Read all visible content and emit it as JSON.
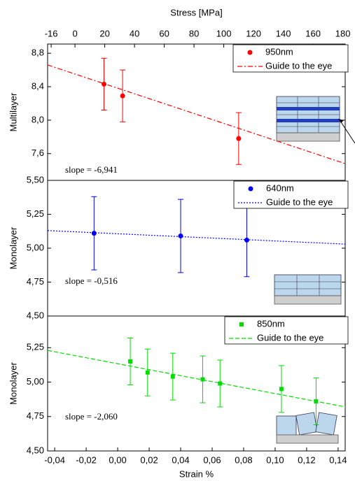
{
  "chart_data": [
    {
      "type": "scatter",
      "xlabel": "Stress [MPa]",
      "ylabel": "Multilayer",
      "annotation": "slope = -6,941",
      "xlim": [
        -18.4,
        181.6
      ],
      "xticks": [
        -16,
        0,
        20,
        40,
        60,
        80,
        100,
        120,
        140,
        160,
        180
      ],
      "ylim": [
        7.28,
        8.91
      ],
      "yticks": [
        {
          "value": 8.8,
          "label": "8,8"
        },
        {
          "value": 8.4,
          "label": "8,4"
        },
        {
          "value": 8.0,
          "label": "8,0"
        },
        {
          "value": 7.6,
          "label": "7,6"
        }
      ],
      "series": [
        {
          "name": "950nm",
          "color": "#ff0000",
          "style": "points",
          "marker": "circle",
          "x": [
            19.5,
            32,
            110
          ],
          "values": [
            8.43,
            8.29,
            7.78
          ],
          "errors": [
            0.31,
            0.31,
            0.31
          ]
        },
        {
          "name": "Guide to the eye",
          "color": "#ff0000",
          "style": "line",
          "dash": "dashdot",
          "x": [
            -18.4,
            181.6
          ],
          "values": [
            8.66,
            7.48
          ]
        }
      ]
    },
    {
      "type": "scatter",
      "ylabel": "Monolayer",
      "annotation": "slope = -0,516",
      "xlim": [
        -0.0445,
        0.1445
      ],
      "ylim": [
        4.5,
        5.5
      ],
      "yticks": [
        {
          "value": 5.5,
          "label": "5,50"
        },
        {
          "value": 5.25,
          "label": "5,25"
        },
        {
          "value": 5.0,
          "label": "5,00"
        },
        {
          "value": 4.75,
          "label": "4,75"
        },
        {
          "value": 4.5,
          "label": "4,50"
        }
      ],
      "series": [
        {
          "name": "640nm",
          "color": "#0000ff",
          "style": "points",
          "marker": "circle",
          "x": [
            -0.015,
            0.04,
            0.082
          ],
          "values": [
            5.11,
            5.09,
            5.06
          ],
          "errors": [
            0.27,
            0.27,
            0.27
          ]
        },
        {
          "name": "Guide to the eye",
          "color": "#0000ff",
          "style": "line",
          "dash": "dot",
          "x": [
            -0.0445,
            0.1445
          ],
          "values": [
            5.13,
            5.03
          ]
        }
      ]
    },
    {
      "type": "scatter",
      "xlabel": "Strain %",
      "ylabel": "Monolayer",
      "annotation": "slope = -2,060",
      "xlim": [
        -0.0445,
        0.1445
      ],
      "xticks": [
        {
          "value": -0.04,
          "label": "-0,04"
        },
        {
          "value": -0.02,
          "label": "-0,02"
        },
        {
          "value": 0.0,
          "label": "0,00"
        },
        {
          "value": 0.02,
          "label": "0,02"
        },
        {
          "value": 0.04,
          "label": "0,04"
        },
        {
          "value": 0.06,
          "label": "0,06"
        },
        {
          "value": 0.08,
          "label": "0,08"
        },
        {
          "value": 0.1,
          "label": "0,10"
        },
        {
          "value": 0.12,
          "label": "0,12"
        },
        {
          "value": 0.14,
          "label": "0,14"
        }
      ],
      "ylim": [
        4.5,
        5.48
      ],
      "yticks": [
        {
          "value": 5.25,
          "label": "5,25"
        },
        {
          "value": 5.0,
          "label": "5,00"
        },
        {
          "value": 4.75,
          "label": "4,75"
        },
        {
          "value": 4.5,
          "label": "4,50"
        }
      ],
      "series": [
        {
          "name": "850nm",
          "color": "#00dd00",
          "style": "points",
          "marker": "square",
          "x": [
            0.008,
            0.019,
            0.035,
            0.054,
            0.065,
            0.104,
            0.126
          ],
          "values": [
            5.15,
            5.07,
            5.04,
            5.02,
            4.99,
            4.95,
            4.86
          ],
          "errors": [
            0.17,
            0.17,
            0.17,
            0.17,
            0.17,
            0.17,
            0.17
          ]
        },
        {
          "name": "Guide to the eye",
          "color": "#00dd00",
          "style": "line",
          "dash": "dash",
          "x": [
            -0.0445,
            0.1445
          ],
          "values": [
            5.23,
            4.82
          ]
        }
      ]
    }
  ]
}
